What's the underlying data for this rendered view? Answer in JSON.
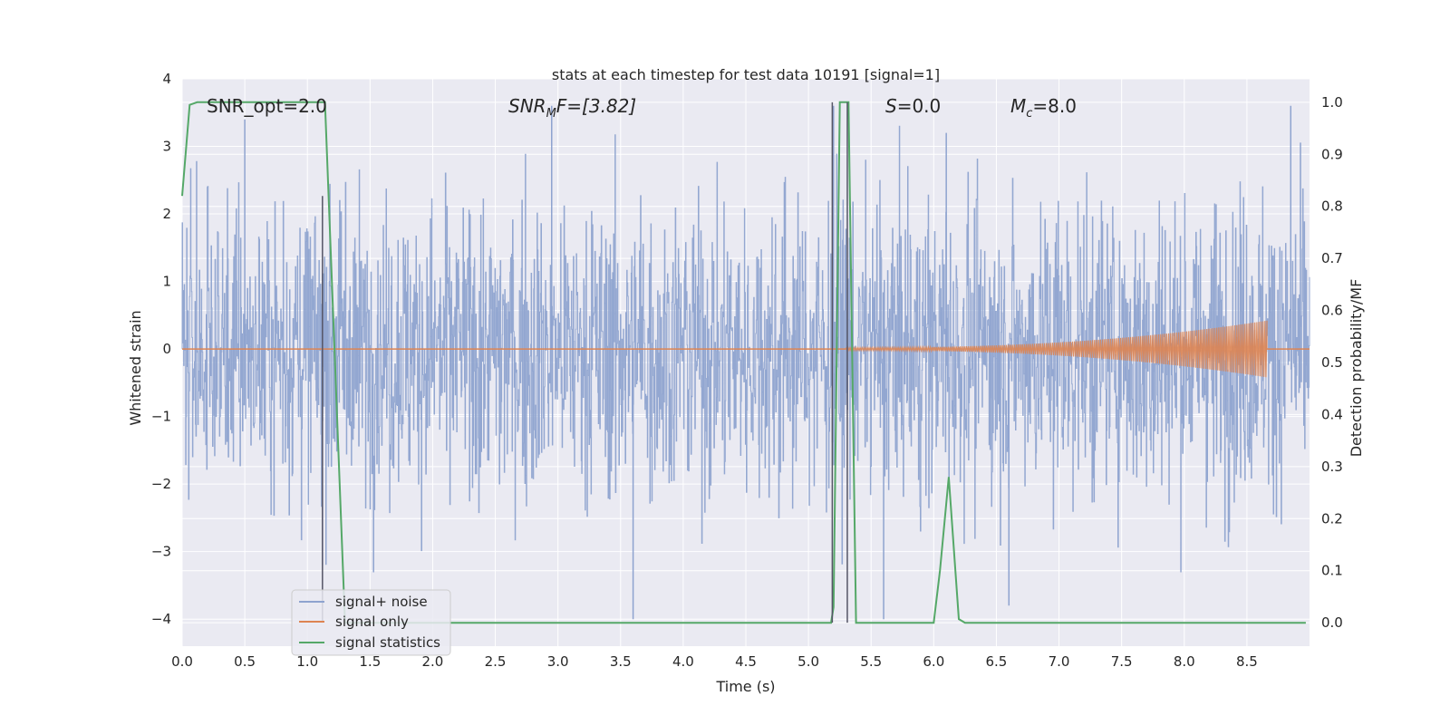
{
  "chart_data": {
    "type": "line",
    "title": "stats at each timestep for test data 10191 [signal=1]",
    "xlabel": "Time (s)",
    "ylabel": "Whitened strain",
    "y2label": "Detection probability/MF",
    "xlim": [
      0.0,
      9.0
    ],
    "ylim": [
      -4.4,
      4.0
    ],
    "y2lim": [
      -0.045,
      1.045
    ],
    "xticks": [
      "0.0",
      "0.5",
      "1.0",
      "1.5",
      "2.0",
      "2.5",
      "3.0",
      "3.5",
      "4.0",
      "4.5",
      "5.0",
      "5.5",
      "6.0",
      "6.5",
      "7.0",
      "7.5",
      "8.0",
      "8.5"
    ],
    "yticks": [
      "4",
      "3",
      "2",
      "1",
      "0",
      "−1",
      "−2",
      "−3",
      "−4"
    ],
    "y2ticks": [
      "1.0",
      "0.9",
      "0.8",
      "0.7",
      "0.6",
      "0.5",
      "0.4",
      "0.3",
      "0.2",
      "0.1",
      "0.0"
    ],
    "grid": true,
    "legend_position": "lower-left",
    "annotations": {
      "snr_opt": "SNR_opt=2.0",
      "snr_mf_a": "SNR",
      "snr_mf_sub": "M",
      "snr_mf_b": "F=[3.82]",
      "s_label": "S",
      "s_value": "=0.0",
      "mc_label": "M",
      "mc_sub": "c",
      "mc_value": "=8.0"
    },
    "series": [
      {
        "name": "signal+ noise",
        "color": "#8ea3cf",
        "description_type": "noise",
        "envelope_typical": 2.3,
        "extreme_peaks": [
          {
            "t": 0.5,
            "v": 3.4
          },
          {
            "t": 1.12,
            "v": -3.2
          },
          {
            "t": 2.95,
            "v": 3.6
          },
          {
            "t": 3.6,
            "v": -4.0
          },
          {
            "t": 5.2,
            "v": 3.6
          },
          {
            "t": 5.6,
            "v": -4.0
          },
          {
            "t": 6.1,
            "v": 3.2
          },
          {
            "t": 6.6,
            "v": -3.8
          },
          {
            "t": 8.85,
            "v": 3.6
          }
        ]
      },
      {
        "name": "signal only",
        "color": "#dd8452",
        "chirp": {
          "start": 5.3,
          "end": 8.66,
          "final_amplitude": 0.4
        }
      },
      {
        "name": "signal statistics",
        "color": "#55a868",
        "axis": "right",
        "x": [
          0.0,
          0.06,
          0.12,
          1.12,
          1.14,
          1.3,
          5.13,
          5.18,
          5.2,
          5.25,
          5.32,
          5.38,
          5.45,
          5.52,
          6.0,
          6.05,
          6.12,
          6.2,
          6.25,
          8.97
        ],
        "y": [
          0.82,
          0.995,
          1.0,
          1.0,
          1.0,
          0.0,
          0.0,
          0.0,
          0.03,
          1.0,
          1.0,
          0.0,
          0.0,
          0.0,
          0.0,
          0.1,
          0.28,
          0.007,
          0.0,
          0.0
        ]
      }
    ],
    "vlines": [
      {
        "x": 1.12,
        "ymin_right": 0.0,
        "ymax_right": 0.82
      },
      {
        "x": 5.19,
        "ymin_right": 0.0,
        "ymax_right": 1.0
      },
      {
        "x": 5.31,
        "ymin_right": 0.0,
        "ymax_right": 1.0
      }
    ]
  },
  "colors": {
    "plot_bg": "#eaeaf2",
    "grid": "#ffffff",
    "noise": "#8ea3cf",
    "signal": "#dd8452",
    "stat": "#55a868",
    "vline": "#555566"
  }
}
